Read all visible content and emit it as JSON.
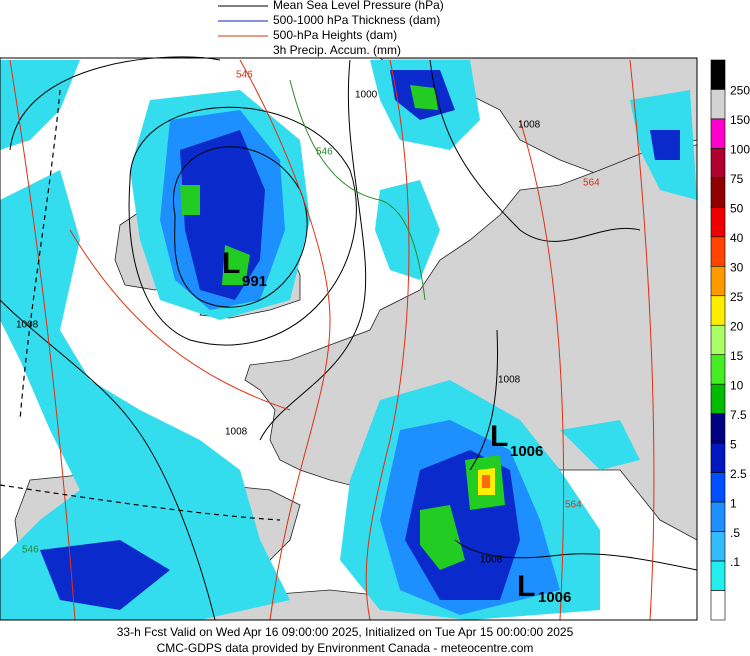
{
  "legend": [
    {
      "label": "Mean Sea Level Pressure (hPa)",
      "color": "#000000"
    },
    {
      "label": "500-1000 hPa Thickness (dam)",
      "color": "#1020c0"
    },
    {
      "label": "500-hPa Heights (dam)",
      "color": "#e03010"
    },
    {
      "label": "3h Precip. Accum. (mm)"
    }
  ],
  "colorbar": {
    "colors": [
      "#000000",
      "#d3d3d3",
      "#ff00cc",
      "#b00030",
      "#900000",
      "#ee0000",
      "#ff4400",
      "#ff9900",
      "#ffee00",
      "#aaff66",
      "#44ee22",
      "#00bb00",
      "#000080",
      "#0018c0",
      "#0050ff",
      "#1d8fff",
      "#33bbff",
      "#22eeee",
      "#ffffff"
    ],
    "labels": [
      "250",
      "150",
      "100",
      "75",
      "50",
      "40",
      "30",
      "25",
      "20",
      "15",
      "10",
      "7.5",
      "5",
      "2.5",
      "1",
      ".5",
      ".1"
    ]
  },
  "lows": [
    {
      "letter": "L",
      "pressure": "991"
    },
    {
      "letter": "L",
      "pressure": "1006"
    },
    {
      "letter": "L",
      "pressure": "1006"
    }
  ],
  "contour_labels": [
    "546",
    "1000",
    "546",
    "1008",
    "564",
    "1008",
    "1008",
    "1008",
    "546",
    "564",
    "1008"
  ],
  "footer": [
    "33-h Fcst Valid on Wed Apr 16 09:00:00 2025, Initialized on Tue Apr 15 00:00:00 2025",
    "CMC-GDPS data provided by Environment Canada - meteocentre.com"
  ]
}
